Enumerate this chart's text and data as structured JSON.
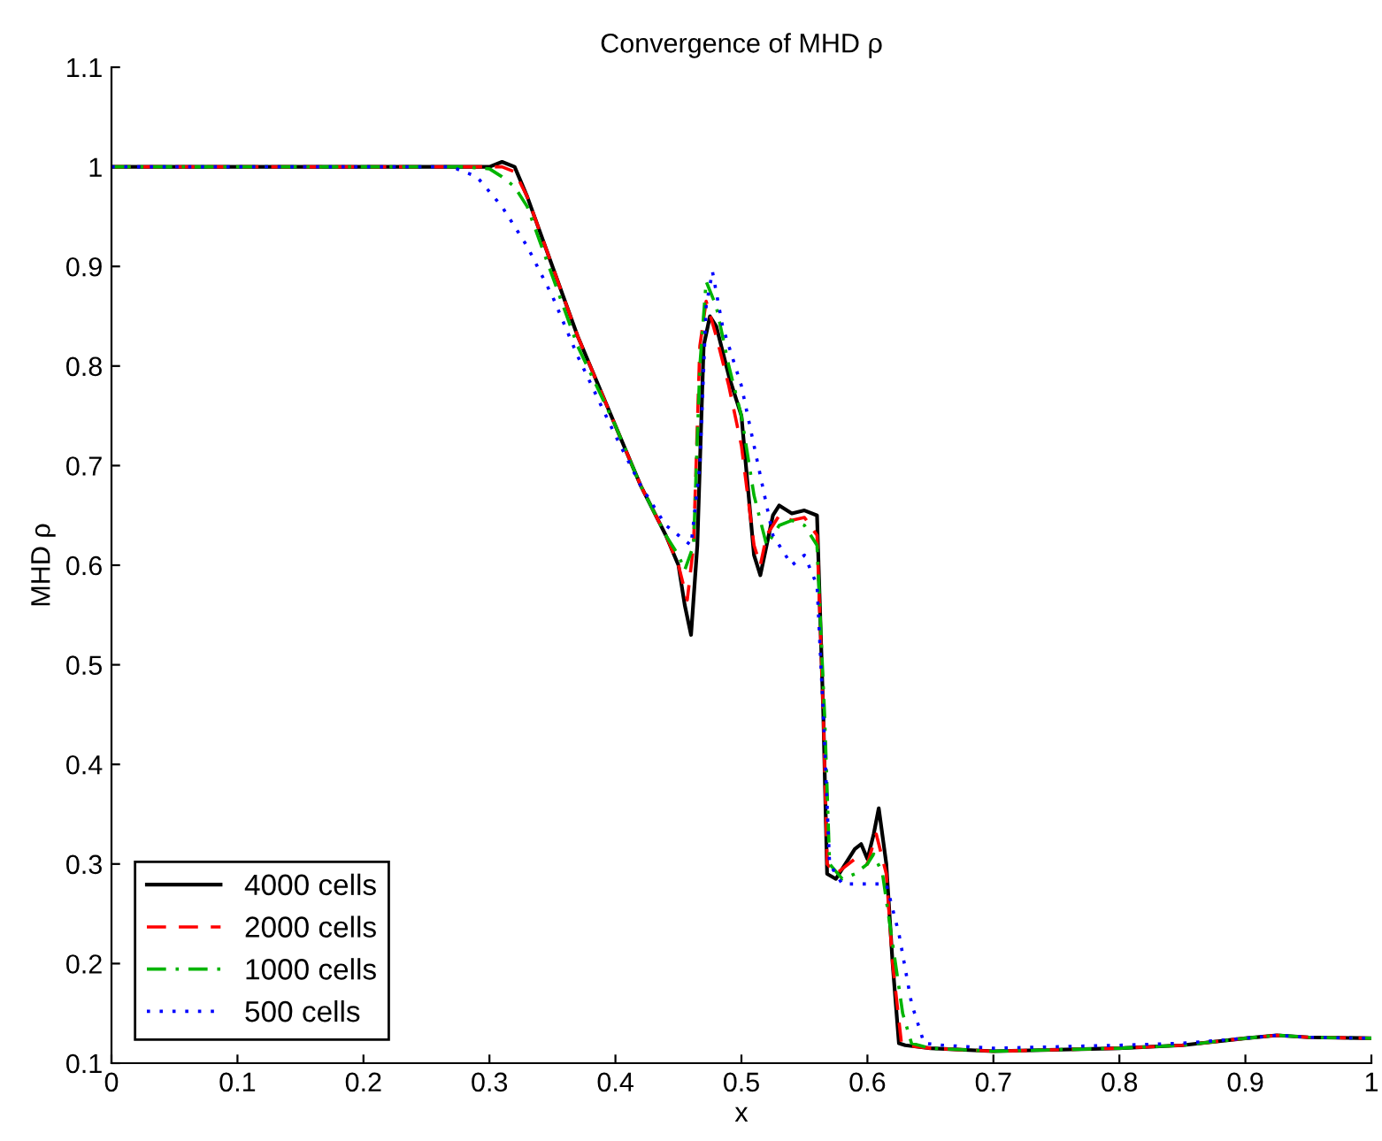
{
  "chart_data": {
    "type": "line",
    "title": "Convergence of MHD ρ",
    "xlabel": "x",
    "ylabel": "MHD ρ",
    "xlim": [
      0,
      1
    ],
    "ylim": [
      0.1,
      1.1
    ],
    "xticks": [
      0,
      0.1,
      0.2,
      0.3,
      0.4,
      0.5,
      0.6,
      0.7,
      0.8,
      0.9,
      1
    ],
    "yticks": [
      0.1,
      0.2,
      0.3,
      0.4,
      0.5,
      0.6,
      0.7,
      0.8,
      0.9,
      1,
      1.1
    ],
    "grid": false,
    "legend": "bottom left",
    "series": [
      {
        "name": "4000 cells",
        "color": "#000000",
        "line_style": "solid",
        "x": [
          0,
          0.28,
          0.3,
          0.31,
          0.32,
          0.33,
          0.35,
          0.37,
          0.4,
          0.42,
          0.44,
          0.45,
          0.455,
          0.46,
          0.465,
          0.47,
          0.475,
          0.48,
          0.49,
          0.5,
          0.505,
          0.51,
          0.515,
          0.52,
          0.525,
          0.53,
          0.54,
          0.55,
          0.56,
          0.565,
          0.568,
          0.575,
          0.58,
          0.59,
          0.595,
          0.6,
          0.605,
          0.609,
          0.615,
          0.62,
          0.625,
          0.63,
          0.65,
          0.7,
          0.8,
          0.85,
          0.9,
          0.925,
          0.95,
          1
        ],
        "values": [
          1,
          1,
          1,
          1.005,
          1,
          0.97,
          0.9,
          0.83,
          0.74,
          0.68,
          0.63,
          0.6,
          0.56,
          0.53,
          0.62,
          0.82,
          0.85,
          0.84,
          0.79,
          0.75,
          0.68,
          0.61,
          0.59,
          0.62,
          0.65,
          0.66,
          0.652,
          0.655,
          0.65,
          0.45,
          0.29,
          0.285,
          0.295,
          0.315,
          0.32,
          0.305,
          0.33,
          0.356,
          0.3,
          0.2,
          0.12,
          0.118,
          0.115,
          0.112,
          0.115,
          0.118,
          0.125,
          0.128,
          0.126,
          0.125
        ]
      },
      {
        "name": "2000 cells",
        "color": "#ff0000",
        "line_style": "dashed",
        "x": [
          0,
          0.28,
          0.3,
          0.31,
          0.32,
          0.33,
          0.35,
          0.37,
          0.4,
          0.42,
          0.44,
          0.45,
          0.457,
          0.462,
          0.467,
          0.472,
          0.48,
          0.49,
          0.5,
          0.51,
          0.515,
          0.52,
          0.53,
          0.54,
          0.55,
          0.56,
          0.565,
          0.568,
          0.575,
          0.58,
          0.59,
          0.6,
          0.607,
          0.615,
          0.62,
          0.627,
          0.63,
          0.65,
          0.7,
          0.8,
          0.85,
          0.9,
          0.925,
          0.95,
          1
        ],
        "values": [
          1,
          1,
          1,
          1.0,
          0.995,
          0.97,
          0.9,
          0.83,
          0.74,
          0.68,
          0.63,
          0.6,
          0.565,
          0.62,
          0.82,
          0.865,
          0.83,
          0.78,
          0.72,
          0.62,
          0.6,
          0.63,
          0.65,
          0.645,
          0.648,
          0.63,
          0.45,
          0.3,
          0.29,
          0.295,
          0.305,
          0.3,
          0.33,
          0.29,
          0.2,
          0.12,
          0.118,
          0.115,
          0.112,
          0.115,
          0.118,
          0.125,
          0.128,
          0.126,
          0.125
        ]
      },
      {
        "name": "1000 cells",
        "color": "#00b400",
        "line_style": "dashdot",
        "x": [
          0,
          0.28,
          0.3,
          0.31,
          0.32,
          0.33,
          0.35,
          0.37,
          0.4,
          0.42,
          0.44,
          0.45,
          0.455,
          0.462,
          0.467,
          0.472,
          0.48,
          0.49,
          0.5,
          0.51,
          0.52,
          0.53,
          0.54,
          0.55,
          0.56,
          0.566,
          0.57,
          0.58,
          0.59,
          0.6,
          0.605,
          0.612,
          0.62,
          0.628,
          0.635,
          0.65,
          0.7,
          0.8,
          0.85,
          0.9,
          0.925,
          0.95,
          1
        ],
        "values": [
          1,
          1,
          0.998,
          0.99,
          0.98,
          0.96,
          0.89,
          0.82,
          0.74,
          0.68,
          0.63,
          0.61,
          0.595,
          0.62,
          0.8,
          0.885,
          0.86,
          0.8,
          0.75,
          0.67,
          0.62,
          0.64,
          0.645,
          0.64,
          0.62,
          0.45,
          0.3,
          0.285,
          0.29,
          0.3,
          0.31,
          0.29,
          0.22,
          0.15,
          0.12,
          0.115,
          0.112,
          0.115,
          0.118,
          0.125,
          0.128,
          0.126,
          0.125
        ]
      },
      {
        "name": "500 cells",
        "color": "#0000ff",
        "line_style": "dotted",
        "x": [
          0,
          0.27,
          0.29,
          0.31,
          0.33,
          0.35,
          0.37,
          0.4,
          0.42,
          0.44,
          0.45,
          0.46,
          0.467,
          0.472,
          0.477,
          0.485,
          0.5,
          0.51,
          0.52,
          0.525,
          0.53,
          0.54,
          0.55,
          0.56,
          0.565,
          0.57,
          0.58,
          0.6,
          0.615,
          0.625,
          0.635,
          0.645,
          0.66,
          0.7,
          0.8,
          0.85,
          0.9,
          0.925,
          0.95,
          1
        ],
        "values": [
          1,
          1,
          0.99,
          0.96,
          0.92,
          0.87,
          0.81,
          0.73,
          0.68,
          0.64,
          0.63,
          0.62,
          0.7,
          0.86,
          0.895,
          0.84,
          0.78,
          0.72,
          0.66,
          0.63,
          0.62,
          0.6,
          0.61,
          0.58,
          0.45,
          0.3,
          0.28,
          0.28,
          0.28,
          0.23,
          0.16,
          0.12,
          0.118,
          0.115,
          0.118,
          0.12,
          0.125,
          0.128,
          0.126,
          0.125
        ]
      }
    ]
  }
}
